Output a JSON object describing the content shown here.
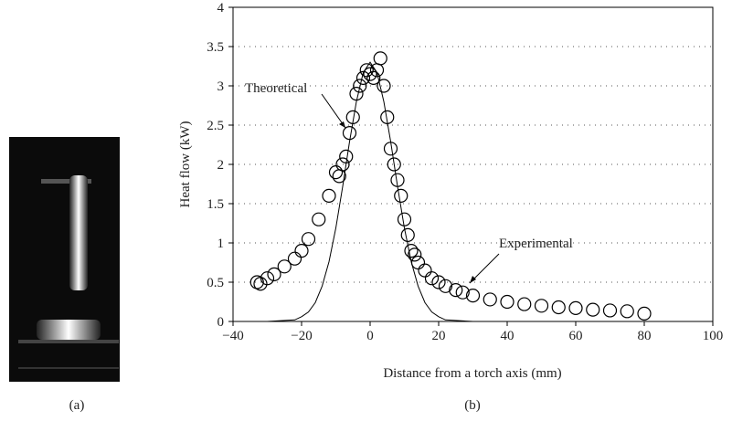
{
  "panels": [
    "(a)",
    "(b)"
  ],
  "chart_data": {
    "type": "scatter",
    "x_label": "Distance from a torch axis (mm)",
    "y_label": "Heat flow (kW)",
    "xlim": [
      -40,
      100
    ],
    "xticks": [
      {
        "value": -40,
        "label": "−40"
      },
      {
        "value": -20,
        "label": "−20"
      },
      0,
      20,
      40,
      60,
      80,
      100
    ],
    "ylim": [
      0,
      4
    ],
    "yticks": [
      0,
      0.5,
      1,
      1.5,
      2,
      2.5,
      3,
      3.5,
      4
    ],
    "grid": true,
    "series": [
      {
        "name": "Theoretical",
        "type": "line",
        "color": "#000000",
        "x": [
          -30,
          -22,
          -20,
          -18,
          -16,
          -14,
          -12,
          -10,
          -8,
          -6,
          -4,
          -2,
          0,
          2,
          4,
          6,
          8,
          10,
          12,
          14,
          16,
          18,
          20,
          22,
          30
        ],
        "values": [
          0,
          0.02,
          0.06,
          0.12,
          0.24,
          0.45,
          0.76,
          1.19,
          1.72,
          2.29,
          2.8,
          3.17,
          3.3,
          3.17,
          2.8,
          2.29,
          1.72,
          1.19,
          0.76,
          0.45,
          0.24,
          0.12,
          0.06,
          0.02,
          0
        ]
      },
      {
        "name": "Experimental",
        "type": "scatter",
        "color": "#000000",
        "x": [
          -33,
          -32,
          -30,
          -28,
          -25,
          -22,
          -20,
          -18,
          -15,
          -12,
          -10,
          -9,
          -8,
          -7,
          -6,
          -5,
          -4,
          -3,
          -2,
          -1,
          0,
          1,
          2,
          3,
          4,
          5,
          6,
          7,
          8,
          9,
          10,
          11,
          12,
          13,
          14,
          16,
          18,
          20,
          22,
          25,
          27,
          30,
          35,
          40,
          45,
          50,
          55,
          60,
          65,
          70,
          75,
          80
        ],
        "values": [
          0.5,
          0.48,
          0.55,
          0.6,
          0.7,
          0.8,
          0.9,
          1.05,
          1.3,
          1.6,
          1.9,
          1.85,
          2.0,
          2.1,
          2.4,
          2.6,
          2.9,
          3.0,
          3.1,
          3.2,
          3.15,
          3.1,
          3.2,
          3.35,
          3.0,
          2.6,
          2.2,
          2.0,
          1.8,
          1.6,
          1.3,
          1.1,
          0.9,
          0.85,
          0.75,
          0.65,
          0.55,
          0.5,
          0.45,
          0.4,
          0.37,
          0.33,
          0.28,
          0.25,
          0.22,
          0.2,
          0.18,
          0.17,
          0.15,
          0.14,
          0.13,
          0.1
        ]
      }
    ],
    "annotations": [
      {
        "text": "Theoretical",
        "series": 0
      },
      {
        "text": "Experimental",
        "series": 1
      }
    ]
  }
}
